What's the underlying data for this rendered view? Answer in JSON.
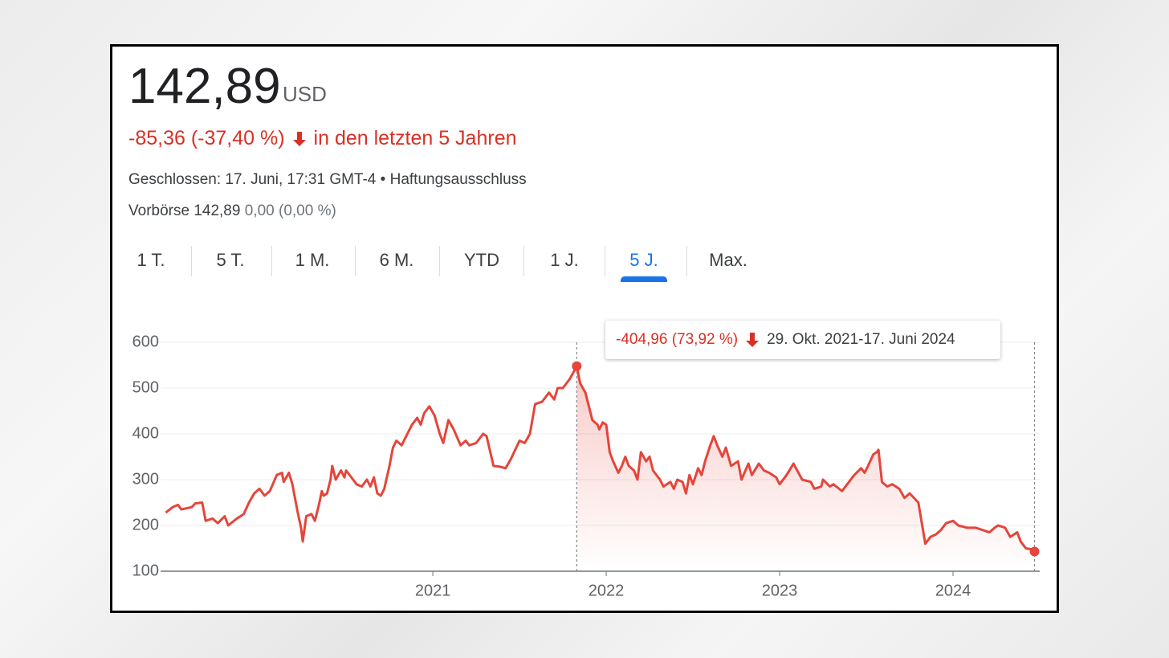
{
  "header": {
    "price": "142,89",
    "currency": "USD",
    "change": "-85,36 (-37,40 %)",
    "change_period": "in den letzten 5 Jahren",
    "status": "Geschlossen: 17. Juni, 17:31 GMT-4",
    "disclaimer": "Haftungsausschluss",
    "premarket_label": "Vorbörse 142,89",
    "premarket_change": "0,00 (0,00 %)"
  },
  "tabs": {
    "items": [
      "1 T.",
      "5 T.",
      "1 M.",
      "6 M.",
      "YTD",
      "1 J.",
      "5 J.",
      "Max."
    ],
    "active": 6
  },
  "chart_data": {
    "type": "line",
    "color": "#e5453b",
    "x": [
      2019.46,
      2019.5,
      2019.53,
      2019.55,
      2019.61,
      2019.63,
      2019.67,
      2019.69,
      2019.73,
      2019.76,
      2019.8,
      2019.82,
      2019.87,
      2019.91,
      2019.94,
      2019.97,
      2020.0,
      2020.03,
      2020.06,
      2020.1,
      2020.13,
      2020.14,
      2020.17,
      2020.19,
      2020.2,
      2020.22,
      2020.24,
      2020.25,
      2020.27,
      2020.3,
      2020.32,
      2020.34,
      2020.36,
      2020.37,
      2020.39,
      2020.41,
      2020.42,
      2020.44,
      2020.47,
      2020.49,
      2020.5,
      2020.53,
      2020.56,
      2020.59,
      2020.62,
      2020.64,
      2020.66,
      2020.68,
      2020.7,
      2020.72,
      2020.75,
      2020.77,
      2020.79,
      2020.82,
      2020.84,
      2020.88,
      2020.91,
      2020.93,
      2020.95,
      2020.98,
      2021.01,
      2021.04,
      2021.06,
      2021.09,
      2021.12,
      2021.16,
      2021.19,
      2021.21,
      2021.25,
      2021.29,
      2021.31,
      2021.35,
      2021.39,
      2021.42,
      2021.45,
      2021.5,
      2021.53,
      2021.56,
      2021.59,
      2021.63,
      2021.67,
      2021.7,
      2021.72,
      2021.75,
      2021.79,
      2021.83,
      2021.85,
      2021.88,
      2021.92,
      2021.95,
      2021.96,
      2021.98,
      2022.0,
      2022.02,
      2022.04,
      2022.07,
      2022.09,
      2022.11,
      2022.13,
      2022.16,
      2022.18,
      2022.2,
      2022.23,
      2022.25,
      2022.27,
      2022.31,
      2022.33,
      2022.37,
      2022.39,
      2022.41,
      2022.44,
      2022.46,
      2022.48,
      2022.5,
      2022.53,
      2022.55,
      2022.57,
      2022.6,
      2022.62,
      2022.64,
      2022.67,
      2022.69,
      2022.72,
      2022.76,
      2022.78,
      2022.82,
      2022.84,
      2022.88,
      2022.91,
      2022.94,
      2022.98,
      2023.0,
      2023.04,
      2023.08,
      2023.13,
      2023.18,
      2023.2,
      2023.24,
      2023.25,
      2023.29,
      2023.31,
      2023.36,
      2023.39,
      2023.43,
      2023.47,
      2023.49,
      2023.51,
      2023.54,
      2023.56,
      2023.57,
      2023.59,
      2023.62,
      2023.65,
      2023.69,
      2023.72,
      2023.75,
      2023.8,
      2023.84,
      2023.87,
      2023.9,
      2023.93,
      2023.96,
      2024.0,
      2024.03,
      2024.08,
      2024.13,
      2024.17,
      2024.21,
      2024.24,
      2024.26,
      2024.3,
      2024.33,
      2024.37,
      2024.39,
      2024.42,
      2024.45,
      2024.47
    ],
    "values": [
      228,
      240,
      245,
      235,
      240,
      248,
      250,
      210,
      215,
      205,
      220,
      200,
      215,
      225,
      250,
      270,
      280,
      265,
      275,
      310,
      315,
      295,
      315,
      290,
      270,
      230,
      195,
      165,
      220,
      225,
      210,
      240,
      275,
      265,
      270,
      300,
      330,
      300,
      320,
      305,
      320,
      305,
      290,
      285,
      300,
      285,
      305,
      270,
      265,
      280,
      330,
      370,
      385,
      375,
      390,
      420,
      435,
      420,
      445,
      460,
      440,
      400,
      380,
      430,
      410,
      375,
      385,
      375,
      380,
      400,
      395,
      330,
      328,
      325,
      345,
      385,
      380,
      400,
      465,
      470,
      490,
      475,
      500,
      500,
      520,
      547.85,
      510,
      490,
      430,
      420,
      410,
      425,
      420,
      360,
      340,
      315,
      330,
      350,
      330,
      320,
      300,
      360,
      340,
      350,
      320,
      300,
      285,
      295,
      280,
      300,
      295,
      270,
      310,
      290,
      325,
      310,
      340,
      375,
      395,
      375,
      350,
      370,
      330,
      340,
      300,
      335,
      310,
      335,
      320,
      315,
      305,
      290,
      310,
      335,
      300,
      295,
      280,
      285,
      300,
      285,
      290,
      275,
      290,
      310,
      325,
      315,
      330,
      355,
      360,
      365,
      295,
      285,
      290,
      280,
      260,
      270,
      250,
      160,
      175,
      180,
      190,
      205,
      210,
      200,
      195,
      195,
      190,
      185,
      195,
      200,
      195,
      175,
      185,
      165,
      150,
      148,
      142.89
    ],
    "xlim": [
      2019.43,
      2024.5
    ],
    "xticks": [
      2021,
      2022,
      2023,
      2024
    ],
    "ylim": [
      100,
      600
    ],
    "yticks": [
      100,
      200,
      300,
      400,
      500,
      600
    ],
    "grid": true,
    "selection": {
      "xlim": [
        2021.83,
        2024.47
      ],
      "change": "-404,96 (73,92 %)",
      "date_range": "29. Okt. 2021-17. Juni 2024"
    }
  }
}
